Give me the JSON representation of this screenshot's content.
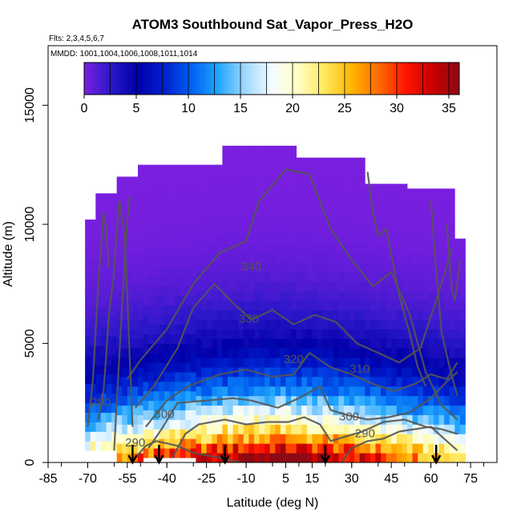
{
  "chart_data": {
    "type": "heatmap",
    "title": "ATOM3 Southbound Sat_Vapor_Press_H2O",
    "subtitle_flights": "Flts: 2,3,4,5,6,7",
    "subtitle_dates": "MMDD: 1001,1004,1006,1008,1011,1014",
    "xlabel": "Latitude (deg N)",
    "ylabel": "Altitude (m)",
    "xlim": [
      -85,
      85
    ],
    "ylim": [
      0,
      17500
    ],
    "x_ticks": [
      -85,
      -70,
      -55,
      -40,
      -25,
      -10,
      5,
      15,
      30,
      45,
      60,
      75
    ],
    "y_ticks": [
      0,
      5000,
      10000,
      15000
    ],
    "colorbar": {
      "range": [
        0,
        36
      ],
      "ticks": [
        0,
        5,
        10,
        15,
        20,
        25,
        30,
        35
      ],
      "colors": [
        "#7b1fe0",
        "#2a17c8",
        "#0000a8",
        "#0020d0",
        "#0060f0",
        "#1fa6ff",
        "#9fd8ff",
        "#f4fbff",
        "#ffffc0",
        "#ffe65a",
        "#ffb400",
        "#ff6a00",
        "#ff1500",
        "#c80000",
        "#8c0a14"
      ]
    },
    "contour_labels": [
      {
        "value": "340",
        "lat": -8,
        "alt": 8200
      },
      {
        "value": "330",
        "lat": -9,
        "alt": 6000
      },
      {
        "value": "320",
        "lat": 8,
        "alt": 4300
      },
      {
        "value": "310",
        "lat": 33,
        "alt": 3900
      },
      {
        "value": "300",
        "lat": -41,
        "alt": 2000
      },
      {
        "value": "300",
        "lat": 29,
        "alt": 1900
      },
      {
        "value": "290",
        "lat": -52,
        "alt": 800
      },
      {
        "value": "290",
        "lat": 35,
        "alt": 1200
      },
      {
        "value": "280",
        "lat": -65,
        "alt": 2500
      }
    ],
    "profile_arrows_lat": [
      -53,
      -43,
      -18,
      20,
      62
    ]
  }
}
